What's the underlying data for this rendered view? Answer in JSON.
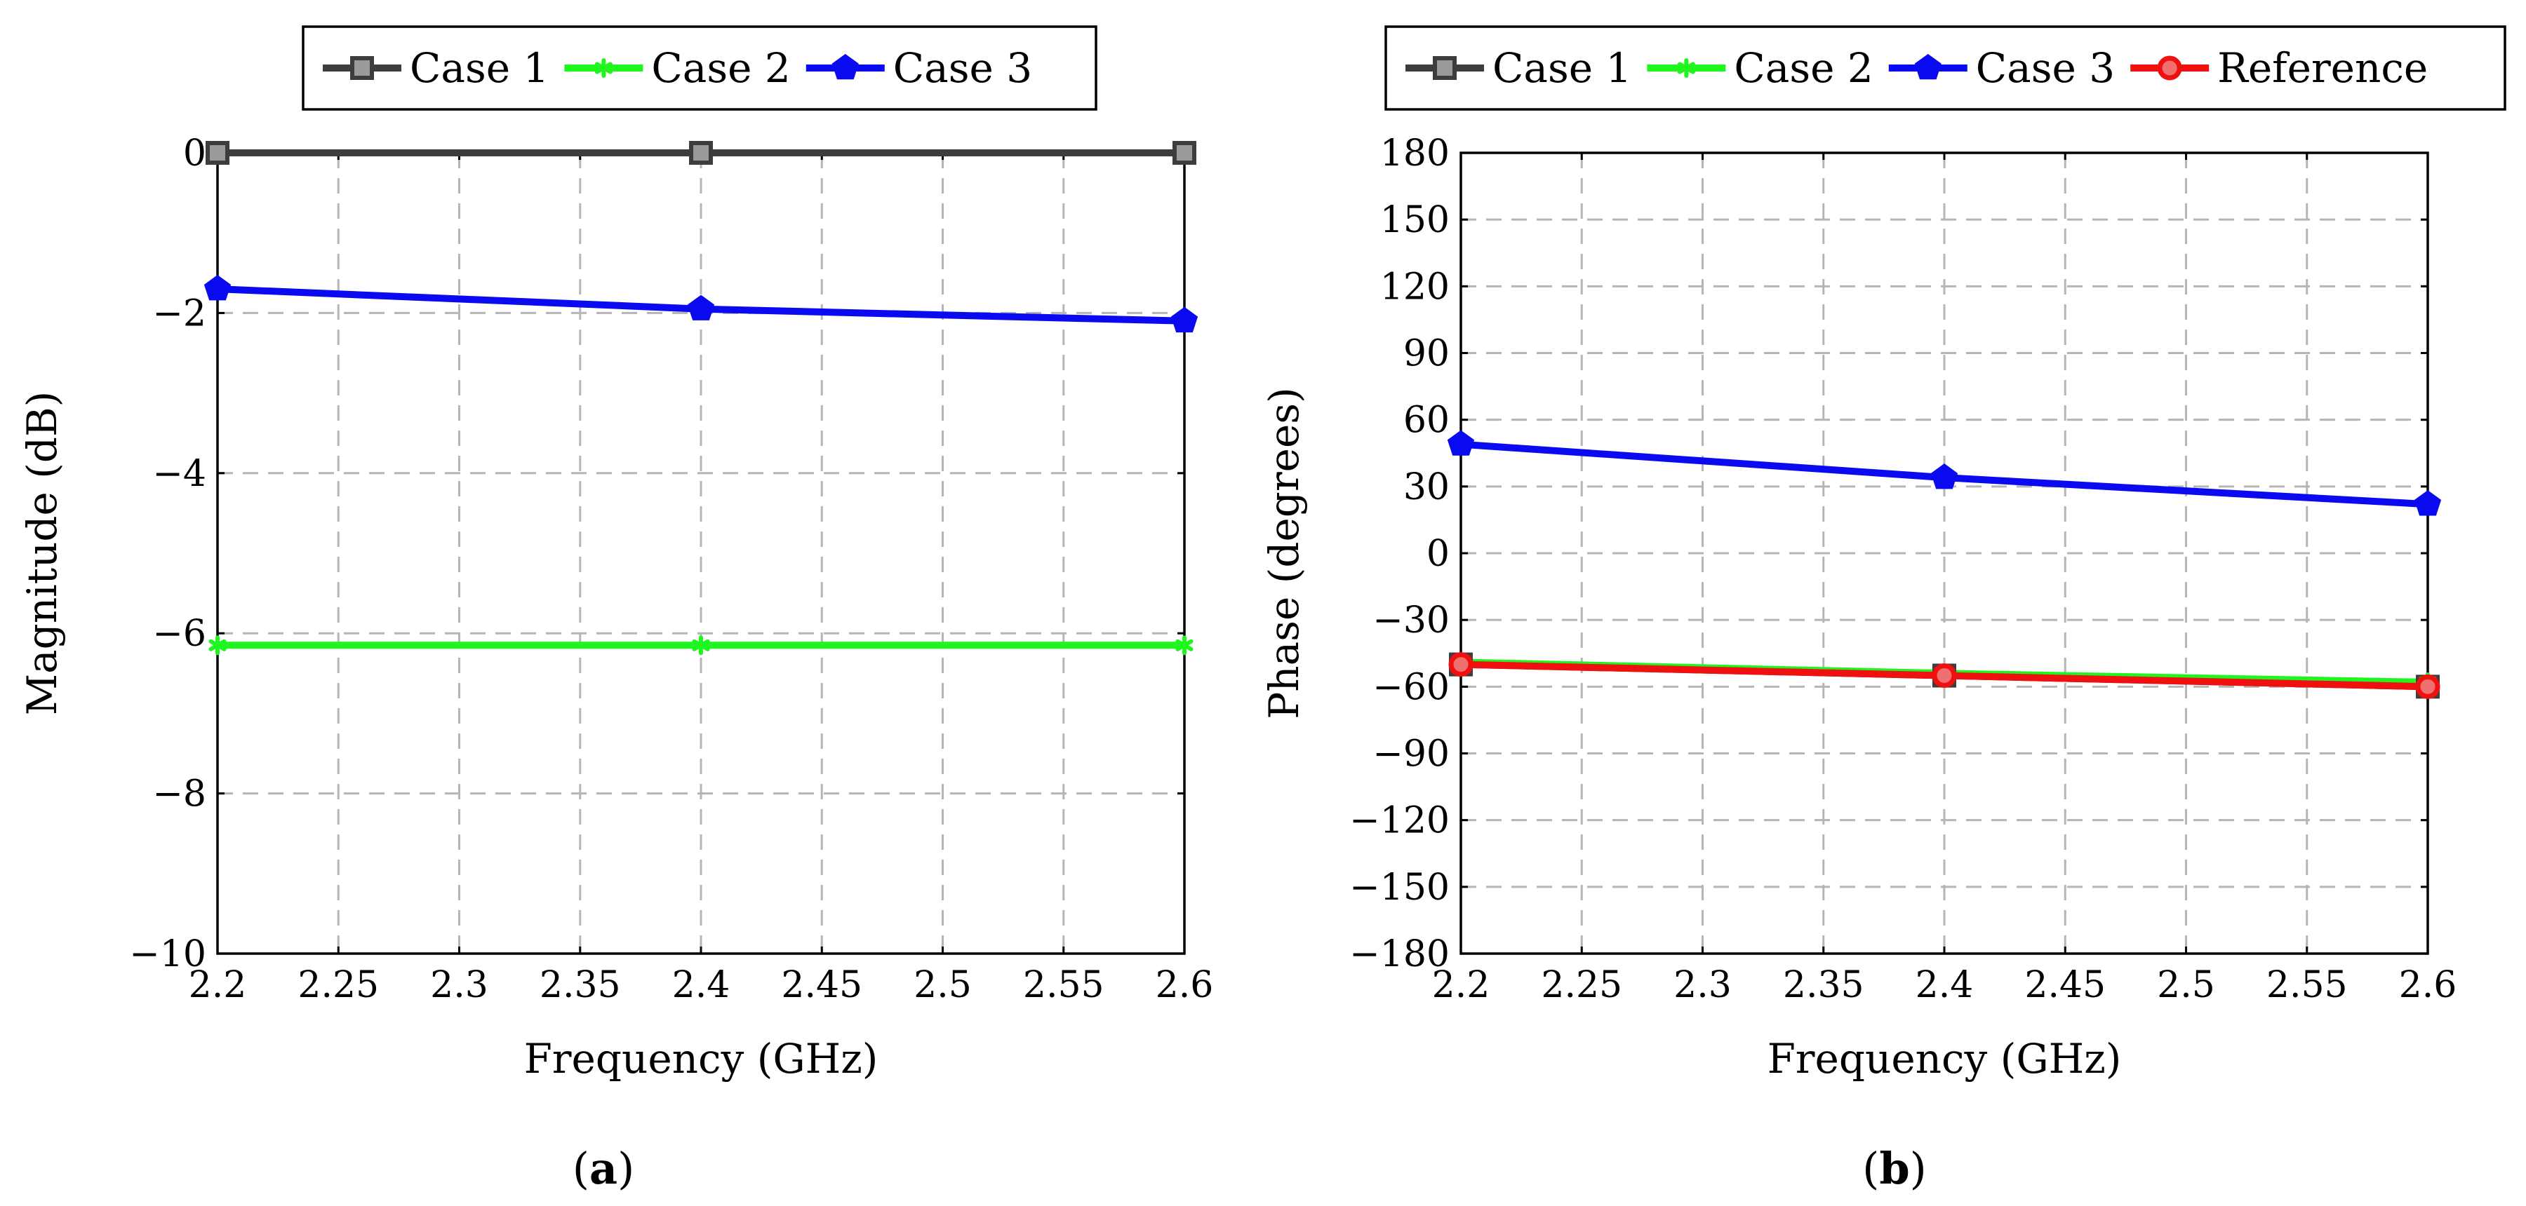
{
  "chart_data": [
    {
      "type": "line",
      "title": "",
      "xlabel": "Frequency (GHz)",
      "ylabel": "Magnitude (dB)",
      "caption": {
        "open": "(",
        "letter": "a",
        "close": ")"
      },
      "xlim": [
        2.2,
        2.6
      ],
      "ylim": [
        -10,
        0
      ],
      "x_ticks": [
        2.2,
        2.25,
        2.3,
        2.35,
        2.4,
        2.45,
        2.5,
        2.55,
        2.6
      ],
      "x_tick_labels": [
        "2.2",
        "2.25",
        "2.3",
        "2.35",
        "2.4",
        "2.45",
        "2.5",
        "2.55",
        "2.6"
      ],
      "y_ticks": [
        0,
        -2,
        -4,
        -6,
        -8,
        -10
      ],
      "y_tick_labels": [
        "0",
        "−2",
        "−4",
        "−6",
        "−8",
        "−10"
      ],
      "grid": true,
      "legend_position": "top-center",
      "x": [
        2.2,
        2.4,
        2.6
      ],
      "series": [
        {
          "name": "Case 1",
          "color": "#3d3d3d",
          "marker": "square",
          "values": [
            0,
            0,
            0
          ]
        },
        {
          "name": "Case 2",
          "color": "#1ff51f",
          "marker": "star",
          "values": [
            -6.15,
            -6.15,
            -6.15
          ]
        },
        {
          "name": "Case 3",
          "color": "#0a0af0",
          "marker": "pentagon",
          "values": [
            -1.7,
            -1.95,
            -2.1
          ]
        }
      ]
    },
    {
      "type": "line",
      "title": "",
      "xlabel": "Frequency (GHz)",
      "ylabel": "Phase (degrees)",
      "caption": {
        "open": "(",
        "letter": "b",
        "close": ")"
      },
      "xlim": [
        2.2,
        2.6
      ],
      "ylim": [
        -180,
        180
      ],
      "x_ticks": [
        2.2,
        2.25,
        2.3,
        2.35,
        2.4,
        2.45,
        2.5,
        2.55,
        2.6
      ],
      "x_tick_labels": [
        "2.2",
        "2.25",
        "2.3",
        "2.35",
        "2.4",
        "2.45",
        "2.5",
        "2.55",
        "2.6"
      ],
      "y_ticks": [
        180,
        150,
        120,
        90,
        60,
        30,
        0,
        -30,
        -60,
        -90,
        -120,
        -150,
        -180
      ],
      "y_tick_labels": [
        "180",
        "150",
        "120",
        "90",
        "60",
        "30",
        "0",
        "−30",
        "−60",
        "−90",
        "−120",
        "−150",
        "−180"
      ],
      "grid": true,
      "legend_position": "top-center",
      "x": [
        2.2,
        2.4,
        2.6
      ],
      "series": [
        {
          "name": "Case 1",
          "color": "#3d3d3d",
          "marker": "square",
          "values": [
            -50,
            -55,
            -60
          ]
        },
        {
          "name": "Case 2",
          "color": "#1ff51f",
          "marker": "star",
          "values": [
            -49,
            -54,
            -58
          ]
        },
        {
          "name": "Case 3",
          "color": "#0a0af0",
          "marker": "pentagon",
          "values": [
            49,
            34,
            22
          ]
        },
        {
          "name": "Reference",
          "color": "#f01010",
          "marker": "circle",
          "values": [
            -50,
            -55,
            -60
          ]
        }
      ]
    }
  ]
}
